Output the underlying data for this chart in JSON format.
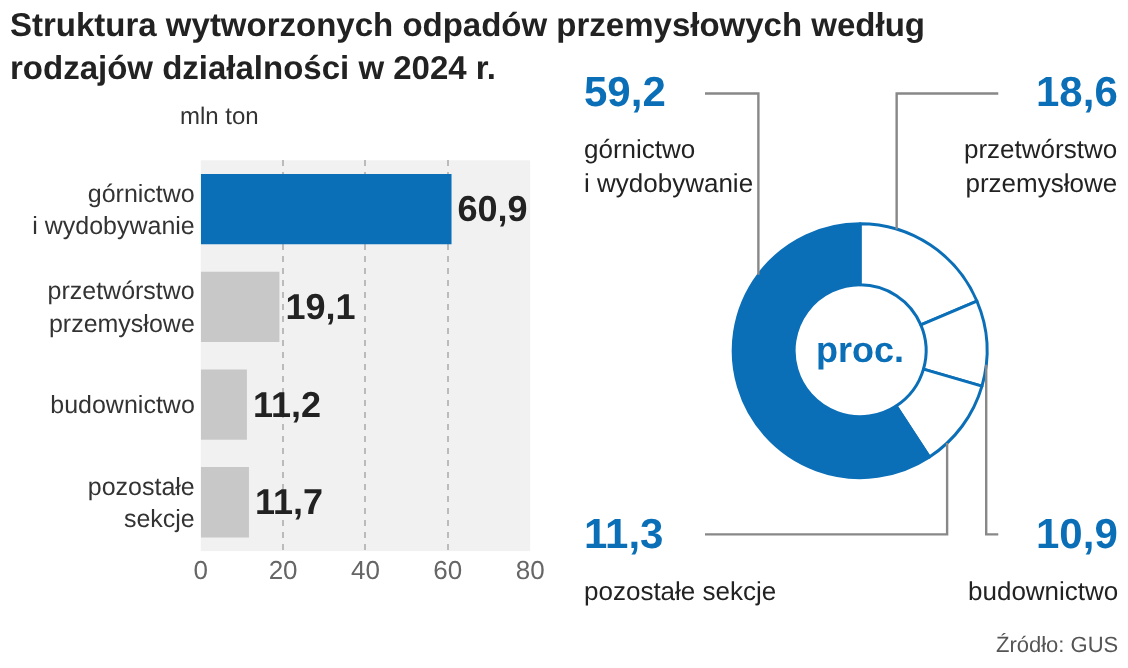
{
  "chart_data": [
    {
      "type": "bar",
      "title": "Struktura wytworzonych odpadów przemysłowych według\nrodzajów działalności w 2024 r.",
      "xlabel": "mln ton",
      "orientation": "horizontal",
      "categories": [
        "górnictwo\ni wydobywanie",
        "przetwórstwo\nprzemysłowe",
        "budownictwo",
        "pozostałe\nsekcje"
      ],
      "values": [
        60.9,
        19.1,
        11.2,
        11.7
      ],
      "colors": [
        "#0b6fb8",
        "#c8c8c8",
        "#c8c8c8",
        "#c8c8c8"
      ],
      "value_labels": [
        "60,9",
        "19,1",
        "11,2",
        "11,7"
      ],
      "xlim": [
        0,
        80
      ],
      "xticks": [
        0,
        20,
        40,
        60,
        80
      ],
      "grid": "x"
    },
    {
      "type": "donut",
      "categories": [
        "przetwórstwo\nprzemysłowe",
        "budownictwo",
        "pozostałe sekcje",
        "górnictwo\ni wydobywanie"
      ],
      "values": [
        18.6,
        10.9,
        11.3,
        59.2
      ],
      "colors": [
        "#ffffff",
        "#ffffff",
        "#ffffff",
        "#0b6fb8"
      ],
      "value_labels": [
        "18,6",
        "10,9",
        "11,3",
        "59,2"
      ],
      "annotations": [
        "proc.",
        "Źródło: GUS"
      ]
    }
  ]
}
